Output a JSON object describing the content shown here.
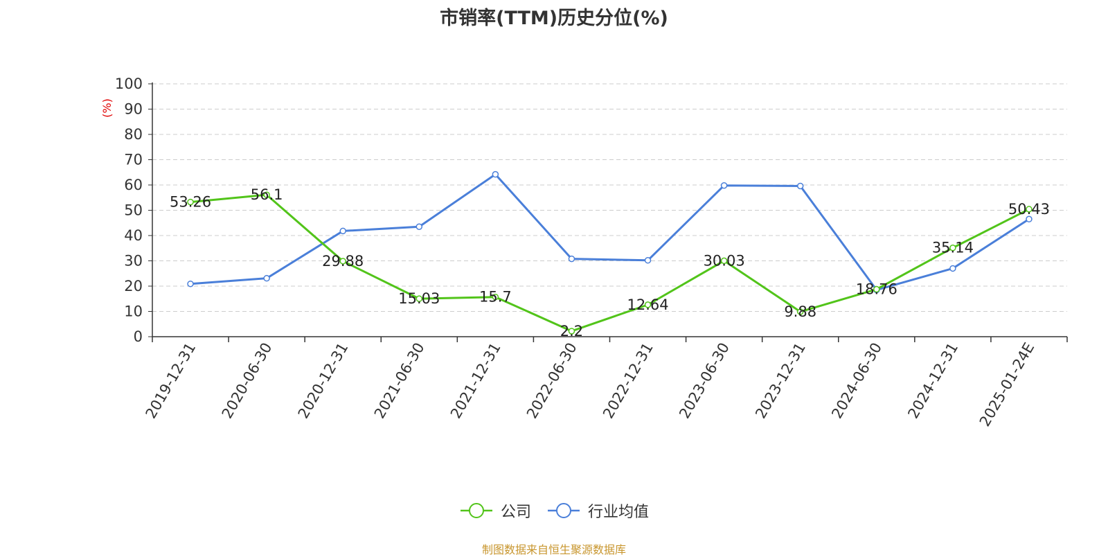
{
  "chart_data": {
    "type": "line",
    "title": "市销率(TTM)历史分位(%)",
    "ylabel": "(%)",
    "ylim": [
      0,
      100
    ],
    "yticks": [
      0,
      10,
      20,
      30,
      40,
      50,
      60,
      70,
      80,
      90,
      100
    ],
    "grid": true,
    "legend_placement": "bottom-center",
    "categories": [
      "2019-12-31",
      "2020-06-30",
      "2020-12-31",
      "2021-06-30",
      "2021-12-31",
      "2022-06-30",
      "2022-12-31",
      "2023-06-30",
      "2023-12-31",
      "2024-06-30",
      "2024-12-31",
      "2025-01-24E"
    ],
    "series": [
      {
        "name": "公司",
        "color": "#52c41a",
        "values": [
          53.26,
          56.1,
          29.88,
          15.03,
          15.7,
          2.2,
          12.64,
          30.03,
          9.88,
          18.76,
          35.14,
          50.43
        ],
        "value_labels": [
          "53.26",
          "56.1",
          "29.88",
          "15.03",
          "15.7",
          "2.2",
          "12.64",
          "30.03",
          "9.88",
          "18.76",
          "35.14",
          "50.43"
        ]
      },
      {
        "name": "行业均值",
        "color": "#4a7fd9",
        "values": [
          20.9,
          23.1,
          41.8,
          43.5,
          64.2,
          30.8,
          30.2,
          59.8,
          59.6,
          18.5,
          27.0,
          46.5
        ]
      }
    ]
  },
  "source_note": "制图数据来自恒生聚源数据库",
  "colors": {
    "axis": "#333333",
    "grid": "#cccccc",
    "ylabel": "#e00000",
    "source": "#c8962e"
  }
}
